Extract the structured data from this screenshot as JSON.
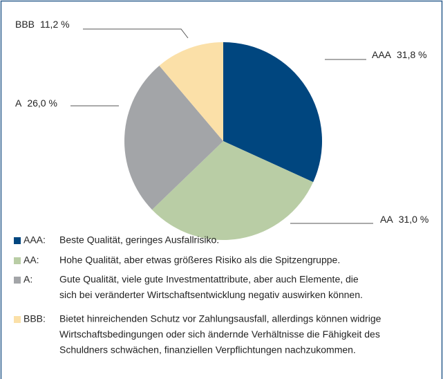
{
  "chart_data": {
    "type": "pie",
    "categories": [
      "AAA",
      "AA",
      "A",
      "BBB"
    ],
    "values": [
      31.8,
      31.0,
      26.0,
      11.2
    ],
    "value_labels": [
      "31,8 %",
      "31,0 %",
      "26,0 %",
      "11,2 %"
    ],
    "colors": [
      "#00467f",
      "#b9cda5",
      "#a3a5a8",
      "#fbe0a8"
    ],
    "legend": [
      {
        "key": "AAA:",
        "lines": [
          "Beste Qualität, geringes Ausfallrisiko."
        ]
      },
      {
        "key": "AA:",
        "lines": [
          "Hohe Qualität, aber etwas größeres Risiko als die Spitzengruppe."
        ]
      },
      {
        "key": "A:",
        "lines": [
          "Gute Qualität, viele gute Investmentattribute, aber auch Elemente, die",
          "sich bei veränderter Wirtschaftsentwicklung negativ auswirken können."
        ]
      },
      {
        "key": "BBB:",
        "lines": [
          "Bietet hinreichenden Schutz vor Zahlungsausfall, allerdings können widrige",
          "Wirtschaftsbedingungen oder sich ändernde Verhältnisse die Fähigkeit des",
          "Schuldners schwächen, finanziellen Verpflichtungen nachzukommen."
        ]
      }
    ]
  }
}
